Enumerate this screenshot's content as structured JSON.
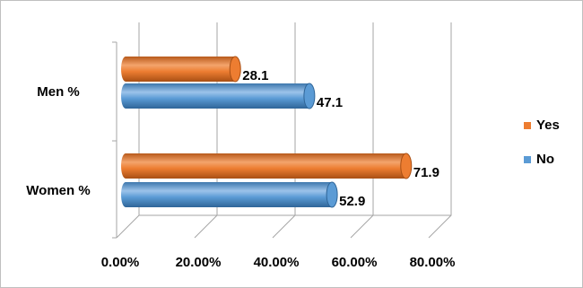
{
  "chart_data": {
    "type": "bar",
    "orientation": "horizontal",
    "categories": [
      "Men %",
      "Women %"
    ],
    "series": [
      {
        "name": "Yes",
        "color": "#ed7d31",
        "values": [
          28.1,
          71.9
        ]
      },
      {
        "name": "No",
        "color": "#5b9bd5",
        "values": [
          47.1,
          52.9
        ]
      }
    ],
    "xlim": [
      0,
      80
    ],
    "xticks": [
      {
        "value": 0,
        "label": "0.00%"
      },
      {
        "value": 20,
        "label": "20.00%"
      },
      {
        "value": 40,
        "label": "40.00%"
      },
      {
        "value": 60,
        "label": "60.00%"
      },
      {
        "value": 80,
        "label": "80.00%"
      }
    ],
    "grid": true,
    "legend": "right"
  }
}
